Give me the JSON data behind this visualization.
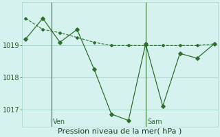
{
  "line1_x": [
    0,
    1,
    2,
    3,
    4,
    5,
    6,
    7,
    8,
    9,
    10,
    11
  ],
  "line1_y": [
    1019.2,
    1019.85,
    1019.1,
    1019.5,
    1018.25,
    1016.85,
    1016.65,
    1019.05,
    1017.1,
    1018.75,
    1018.6,
    1019.05
  ],
  "line2_x": [
    0,
    1,
    2,
    3,
    4,
    5,
    6,
    7,
    8,
    9,
    10,
    11
  ],
  "line2_y": [
    1019.85,
    1019.5,
    1019.4,
    1019.25,
    1019.1,
    1019.0,
    1019.0,
    1019.0,
    1019.0,
    1019.0,
    1019.0,
    1019.05
  ],
  "color": "#2d6e2d",
  "bg_color": "#d5f2ee",
  "grid_color": "#a8d8cc",
  "xlabel": "Pression niveau de la mer( hPa )",
  "ylim": [
    1016.45,
    1020.35
  ],
  "yticks": [
    1017,
    1018,
    1019
  ],
  "ven_x": 1.5,
  "sam_x": 7.0,
  "xlabel_fontsize": 8,
  "tick_fontsize": 7,
  "xlim": [
    -0.2,
    11.2
  ]
}
